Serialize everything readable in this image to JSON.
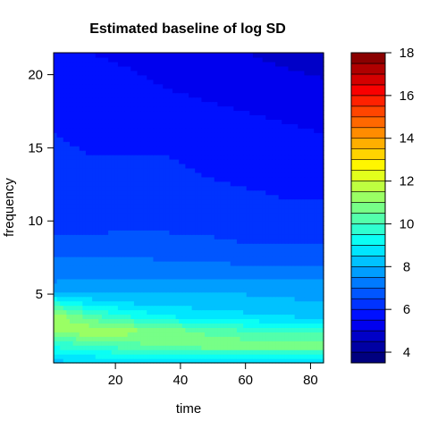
{
  "chart_data": {
    "type": "heatmap",
    "title": "Estimated baseline of log SD",
    "xlabel": "time",
    "ylabel": "frequency",
    "xlim": [
      1,
      84
    ],
    "ylim": [
      0.3,
      21.5
    ],
    "x_ticks": [
      20,
      40,
      60,
      80
    ],
    "y_ticks": [
      5,
      10,
      15,
      20
    ],
    "colorbar": {
      "range": [
        3.5,
        18
      ],
      "ticks": [
        4,
        6,
        8,
        10,
        12,
        14,
        16,
        18
      ],
      "levels": [
        3.5,
        4,
        4.5,
        5,
        5.5,
        6,
        6.5,
        7,
        7.5,
        8,
        8.5,
        9,
        9.5,
        10,
        10.5,
        11,
        11.5,
        12,
        12.5,
        13,
        13.5,
        14,
        14.5,
        15,
        15.5,
        16,
        16.5,
        17,
        17.5,
        18
      ],
      "colors": [
        "#00007F",
        "#0000A3",
        "#0000C8",
        "#0000EE",
        "#0010FF",
        "#0033FF",
        "#0056FF",
        "#007AFF",
        "#009EFF",
        "#00C2FF",
        "#00E6FF",
        "#0BFFF4",
        "#2FFFD0",
        "#53FFAB",
        "#77FF87",
        "#9AFF64",
        "#BEFF40",
        "#E2FF1C",
        "#FFF600",
        "#FFD300",
        "#FFAF00",
        "#FF8C00",
        "#FF6800",
        "#FF4500",
        "#FF2100",
        "#F90000",
        "#D40000",
        "#AF0000",
        "#8A0000"
      ]
    },
    "time_grid": [
      1,
      12,
      24,
      36,
      48,
      60,
      72,
      84
    ],
    "freq_grid": [
      0.3,
      1.5,
      2.5,
      3.5,
      4.5,
      5.5,
      7,
      8.5,
      10,
      11.5,
      13,
      14.5,
      16,
      17.5,
      19,
      20.5,
      21.5
    ],
    "values": [
      [
        8.3,
        8.4,
        8.5,
        8.5,
        8.4,
        8.3,
        8.2,
        8.3
      ],
      [
        9.6,
        9.9,
        10.3,
        10.6,
        10.8,
        10.9,
        10.9,
        11.0
      ],
      [
        11.0,
        11.5,
        11.2,
        10.8,
        10.4,
        10.0,
        9.8,
        9.7
      ],
      [
        11.4,
        10.2,
        9.5,
        9.0,
        8.8,
        8.6,
        8.5,
        8.4
      ],
      [
        9.4,
        8.7,
        8.4,
        8.3,
        8.2,
        8.2,
        8.1,
        8.0
      ],
      [
        7.6,
        7.7,
        7.7,
        7.7,
        7.8,
        7.8,
        7.7,
        7.7
      ],
      [
        7.2,
        7.2,
        7.2,
        7.1,
        7.1,
        7.0,
        7.0,
        7.0
      ],
      [
        6.6,
        6.6,
        6.7,
        6.6,
        6.6,
        6.5,
        6.5,
        6.5
      ],
      [
        6.4,
        6.3,
        6.4,
        6.4,
        6.3,
        6.3,
        6.2,
        6.2
      ],
      [
        6.3,
        6.1,
        6.2,
        6.3,
        6.2,
        6.1,
        6.0,
        6.0
      ],
      [
        6.2,
        6.0,
        6.1,
        6.1,
        6.0,
        5.9,
        5.9,
        5.9
      ],
      [
        6.1,
        6.0,
        6.0,
        6.0,
        5.9,
        5.8,
        5.8,
        5.7
      ],
      [
        6.0,
        5.9,
        5.9,
        5.8,
        5.8,
        5.7,
        5.6,
        5.5
      ],
      [
        5.9,
        5.8,
        5.8,
        5.7,
        5.6,
        5.5,
        5.4,
        5.3
      ],
      [
        5.8,
        5.7,
        5.6,
        5.5,
        5.4,
        5.3,
        5.2,
        5.1
      ],
      [
        5.7,
        5.6,
        5.5,
        5.4,
        5.2,
        5.1,
        5.0,
        4.9
      ],
      [
        5.7,
        5.5,
        5.4,
        5.3,
        5.1,
        5.0,
        4.9,
        4.8
      ]
    ]
  }
}
